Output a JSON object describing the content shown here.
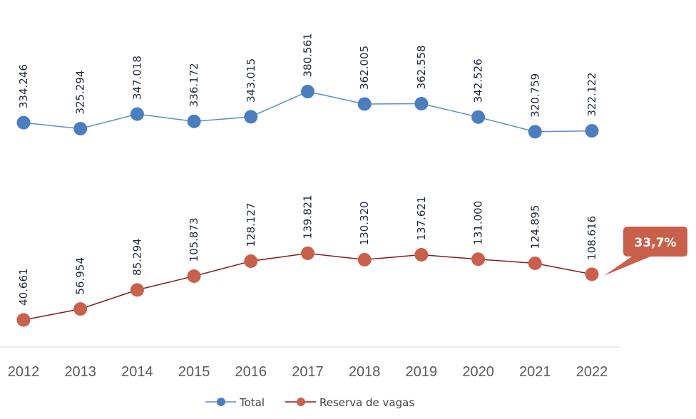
{
  "chart_data": {
    "type": "line",
    "title": "",
    "xlabel": "",
    "ylabel": "",
    "x": [
      "2012",
      "2013",
      "2014",
      "2015",
      "2016",
      "2017",
      "2018",
      "2019",
      "2020",
      "2021",
      "2022"
    ],
    "ylim": [
      0,
      516.8
    ],
    "grid": false,
    "legend_placement": "bottom",
    "series": [
      {
        "name": "Total",
        "color": "#4a7ebf",
        "line_color": "#5b8ccf",
        "values": [
          334.246,
          325.294,
          347.018,
          336.172,
          343.015,
          380.561,
          362.005,
          362.558,
          342.526,
          320.759,
          322.122
        ],
        "labels": [
          "334.246",
          "325.294",
          "347.018",
          "336.172",
          "343.015",
          "380.561",
          "362.005",
          "362.558",
          "342.526",
          "320.759",
          "322.122"
        ]
      },
      {
        "name": "Reserva de vagas",
        "color": "#c9604b",
        "line_color": "#8b1a1a",
        "values": [
          40.661,
          56.954,
          85.294,
          105.873,
          128.127,
          139.821,
          130.32,
          137.621,
          131.0,
          124.895,
          108.616
        ],
        "labels": [
          "40.661",
          "56.954",
          "85.294",
          "105.873",
          "128.127",
          "139.821",
          "130.320",
          "137.621",
          "131.000",
          "124.895",
          "108.616"
        ]
      }
    ],
    "annotations": [
      {
        "text": "33,7%",
        "series": "Reserva de vagas",
        "x": "2022",
        "color": "#c9604b"
      }
    ]
  }
}
